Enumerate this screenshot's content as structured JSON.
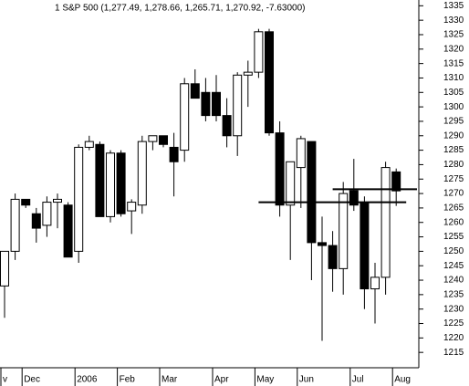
{
  "chart_data": {
    "type": "candlestick",
    "title": "1 S&P 500 (1,277.49, 1,278.66, 1,265.71, 1,270.92, -7.63000)",
    "categories": [
      "v",
      null,
      "Dec",
      null,
      null,
      null,
      null,
      "2006",
      null,
      null,
      null,
      "Feb",
      null,
      null,
      null,
      "Mar",
      null,
      null,
      null,
      null,
      "Apr",
      null,
      null,
      null,
      "May",
      null,
      null,
      null,
      "Jun",
      null,
      null,
      null,
      null,
      "Jul",
      null,
      null,
      null,
      "Aug"
    ],
    "open": [
      1238,
      1250,
      1268,
      1263,
      1259,
      1267,
      1266,
      1250,
      1286,
      1287,
      1262,
      1284,
      1264,
      1266,
      1288,
      1290,
      1286,
      1285,
      1308,
      1305,
      1305,
      1297,
      1290,
      1311,
      1312,
      1326,
      1291,
      1266,
      1279,
      1288,
      1253,
      1252,
      1244,
      1271,
      1267,
      1237,
      1241,
      1277.49
    ],
    "high": [
      1250,
      1270,
      1268,
      1265,
      1269,
      1270,
      1267,
      1287,
      1290,
      1288,
      1285,
      1285,
      1268,
      1290,
      1290,
      1290,
      1291,
      1310,
      1313,
      1310,
      1311,
      1303,
      1312,
      1316,
      1327,
      1327,
      1295,
      1281,
      1290,
      1288,
      1262,
      1257,
      1274,
      1282,
      1269,
      1246,
      1281,
      1278.66
    ],
    "low": [
      1227,
      1247,
      1265,
      1253,
      1255,
      1258,
      1248,
      1246,
      1285,
      1262,
      1260,
      1262,
      1256,
      1263,
      1285,
      1286,
      1269,
      1281,
      1303,
      1295,
      1295,
      1286,
      1283,
      1300,
      1310,
      1290,
      1262,
      1247,
      1265,
      1240,
      1219,
      1236,
      1235,
      1264,
      1230,
      1225,
      1235,
      1265.71
    ],
    "close": [
      1250,
      1268,
      1266,
      1258,
      1267,
      1268,
      1248,
      1286,
      1288,
      1262,
      1284,
      1263,
      1267,
      1288,
      1290,
      1287,
      1281,
      1308,
      1303,
      1297,
      1297,
      1290,
      1311,
      1312,
      1326,
      1291,
      1266,
      1281,
      1289,
      1253,
      1252,
      1244,
      1270,
      1266,
      1237,
      1241,
      1279,
      1270.92
    ],
    "up_color": "#ffffff",
    "down_color": "#000000",
    "hlines": [
      1267,
      1271.5
    ],
    "ylim": [
      1210,
      1337
    ],
    "yticks": [
      1215,
      1220,
      1225,
      1230,
      1235,
      1240,
      1245,
      1250,
      1255,
      1260,
      1265,
      1270,
      1275,
      1280,
      1285,
      1290,
      1295,
      1300,
      1305,
      1310,
      1315,
      1320,
      1325,
      1330,
      1335
    ]
  }
}
